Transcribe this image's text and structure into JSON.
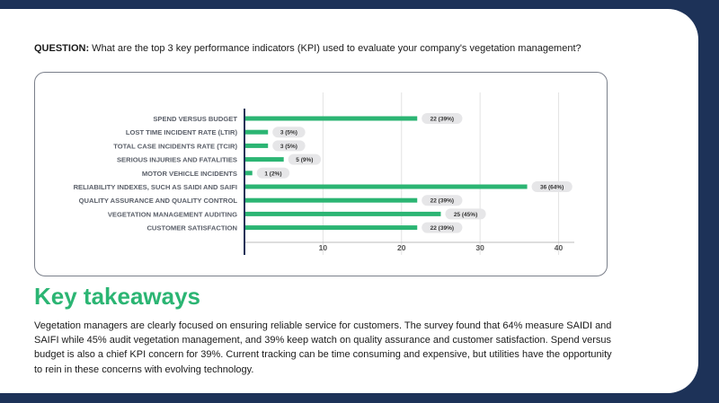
{
  "question": {
    "label": "QUESTION:",
    "text": " What are the top 3 key performance indicators (KPI) used to evaluate your company's vegetation management?"
  },
  "colors": {
    "bar": "#2bb573",
    "pill": "#e6e6e8",
    "axis": "#1d3258",
    "grid": "#e3e3e3",
    "accent": "#2bb573",
    "background": "#1d3258"
  },
  "chart_data": {
    "type": "bar",
    "orientation": "horizontal",
    "categories": [
      "SPEND VERSUS BUDGET",
      "LOST TIME INCIDENT RATE (LTIR)",
      "TOTAL CASE INCIDENTS RATE (TCIR)",
      "SERIOUS INJURIES AND FATALITIES",
      "MOTOR VEHICLE INCIDENTS",
      "RELIABILITY INDEXES, SUCH AS SAIDI AND SAIFI",
      "QUALITY ASSURANCE AND QUALITY CONTROL",
      "VEGETATION MANAGEMENT AUDITING",
      "CUSTOMER SATISFACTION"
    ],
    "values": [
      22,
      3,
      3,
      5,
      1,
      36,
      22,
      25,
      22
    ],
    "labels": [
      "22 (39%)",
      "3 (5%)",
      "3 (5%)",
      "5 (9%)",
      "1 (2%)",
      "36 (64%)",
      "22 (39%)",
      "25 (45%)",
      "22 (39%)"
    ],
    "xlim": [
      0,
      42
    ],
    "xticks": [
      10,
      20,
      30,
      40
    ],
    "grid": true
  },
  "takeaways": {
    "title": "Key takeaways",
    "body": "Vegetation managers are clearly focused on ensuring reliable service for customers. The survey found that 64% measure SAIDI and SAIFI while 45% audit vegetation management, and 39% keep watch on quality assurance and customer satisfaction. Spend versus budget is also a chief KPI concern for 39%. Current tracking can be time consuming and expensive, but utilities have the opportunity to rein in these concerns with evolving technology."
  }
}
